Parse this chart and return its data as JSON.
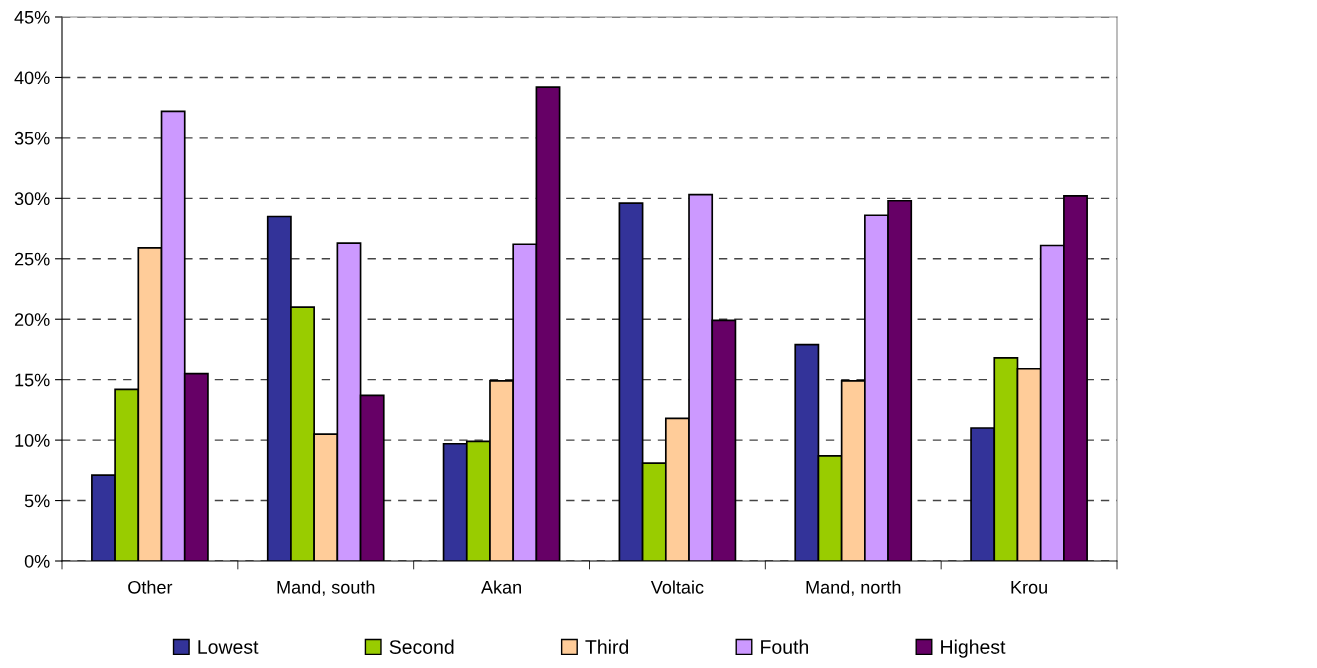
{
  "chart_data": {
    "type": "bar",
    "categories": [
      "Other",
      "Mand, south",
      "Akan",
      "Voltaic",
      "Mand, north",
      "Krou"
    ],
    "series": [
      {
        "name": "Lowest",
        "color": "#333399",
        "values": [
          7.1,
          28.5,
          9.7,
          29.6,
          17.9,
          11.0
        ]
      },
      {
        "name": "Second",
        "color": "#99cc00",
        "values": [
          14.2,
          21.0,
          9.9,
          8.1,
          8.7,
          16.8
        ]
      },
      {
        "name": "Third",
        "color": "#ffcc99",
        "values": [
          25.9,
          10.5,
          14.9,
          11.8,
          14.9,
          15.9
        ]
      },
      {
        "name": "Fouth",
        "color": "#cc99ff",
        "values": [
          37.2,
          26.3,
          26.2,
          30.3,
          28.6,
          26.1
        ]
      },
      {
        "name": "Highest",
        "color": "#660066",
        "values": [
          15.5,
          13.7,
          39.2,
          19.9,
          29.8,
          30.2
        ]
      }
    ],
    "ylim": [
      0,
      45
    ],
    "yticks": [
      {
        "value": 0,
        "label": "0%"
      },
      {
        "value": 5,
        "label": "5%"
      },
      {
        "value": 10,
        "label": "10%"
      },
      {
        "value": 15,
        "label": "15%"
      },
      {
        "value": 20,
        "label": "20%"
      },
      {
        "value": 25,
        "label": "25%"
      },
      {
        "value": 30,
        "label": "30%"
      },
      {
        "value": 35,
        "label": "35%"
      },
      {
        "value": 40,
        "label": "40%"
      },
      {
        "value": 45,
        "label": "45%"
      }
    ],
    "grid": "y",
    "legend": "bottom"
  }
}
